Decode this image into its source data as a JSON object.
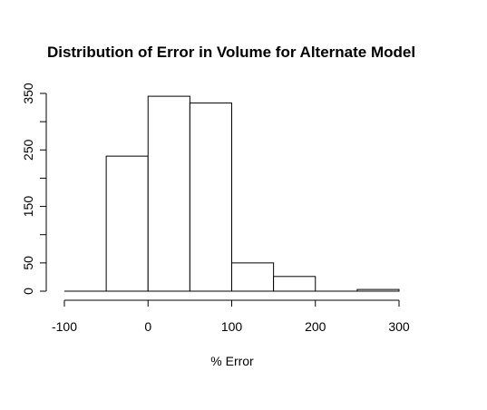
{
  "chart_data": {
    "type": "bar",
    "title": "Distribution of Error in Volume for Alternate Model",
    "xlabel": "% Error",
    "ylabel": "",
    "bins": [
      {
        "from": -100,
        "to": -50,
        "count": 0
      },
      {
        "from": -50,
        "to": 0,
        "count": 239
      },
      {
        "from": 0,
        "to": 50,
        "count": 345
      },
      {
        "from": 50,
        "to": 100,
        "count": 333
      },
      {
        "from": 100,
        "to": 150,
        "count": 50
      },
      {
        "from": 150,
        "to": 200,
        "count": 26
      },
      {
        "from": 200,
        "to": 250,
        "count": 0
      },
      {
        "from": 250,
        "to": 300,
        "count": 3
      }
    ],
    "xlim": [
      -100,
      300
    ],
    "ylim": [
      0,
      350
    ],
    "x_ticks": [
      -100,
      0,
      100,
      200,
      300
    ],
    "y_ticks": [
      0,
      50,
      150,
      250,
      350
    ],
    "grid": false,
    "bar_fill": "#ffffff",
    "bar_stroke": "#000000"
  }
}
